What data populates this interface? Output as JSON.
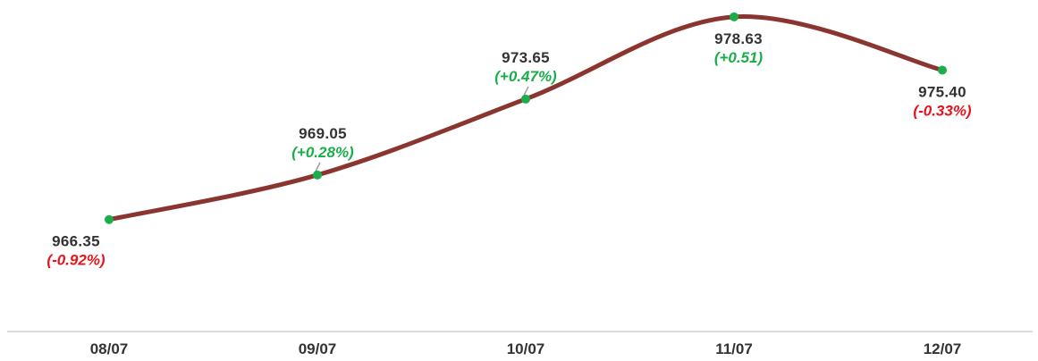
{
  "chart_data": {
    "type": "line",
    "title": "",
    "xlabel": "",
    "ylabel": "",
    "categories": [
      "08/07",
      "09/07",
      "10/07",
      "11/07",
      "12/07"
    ],
    "series": [
      {
        "values": [
          966.35,
          969.05,
          973.65,
          978.63,
          975.4
        ],
        "value_labels": [
          "966.35",
          "969.05",
          "973.65",
          "978.63",
          "975.40"
        ],
        "change_labels": [
          "(-0.92%)",
          "(+0.28%)",
          "(+0.47%)",
          "(+0.51)",
          "(-0.33%)"
        ]
      }
    ],
    "ylim": [
      958,
      979
    ],
    "grid": false,
    "legend": "none"
  },
  "colors": {
    "line": "#8B3530",
    "marker": "#1AAE4A",
    "positive": "#1AAE4A",
    "negative": "#E8141B",
    "axis": "#cfcfcf",
    "text": "#333333",
    "leader": "#9a9a9a"
  }
}
